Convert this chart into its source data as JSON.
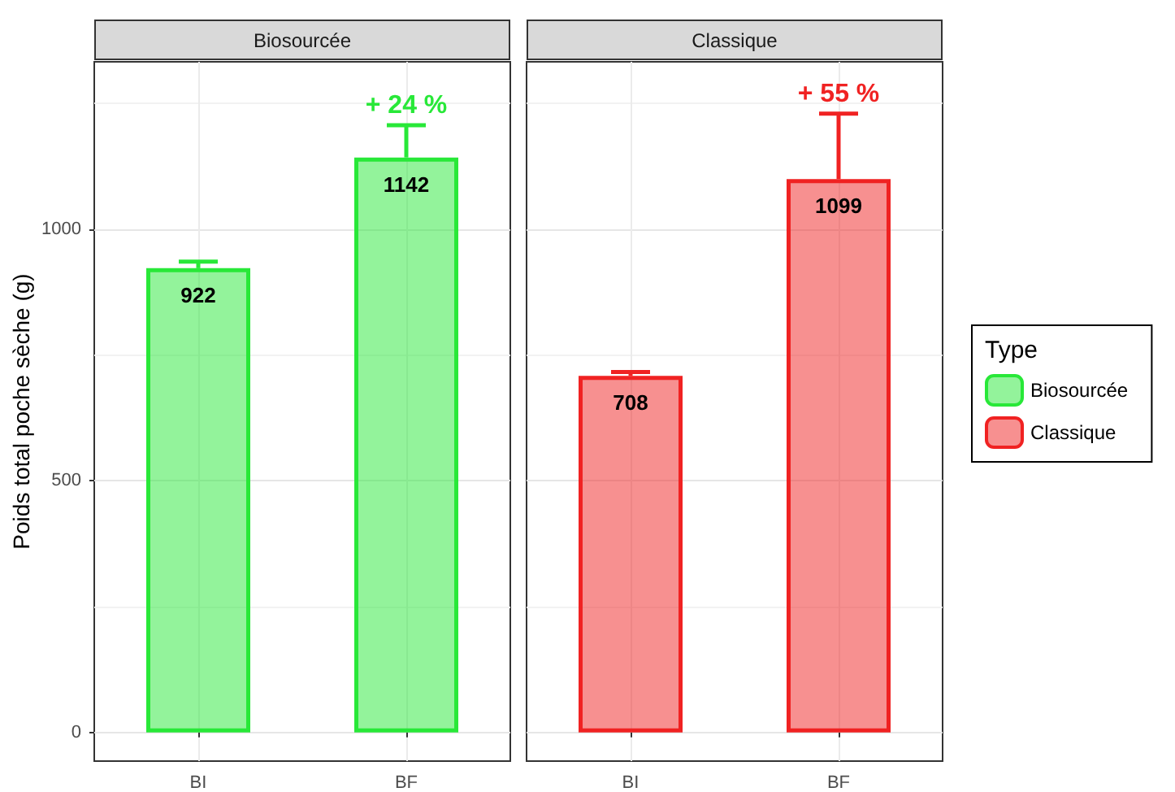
{
  "chart_data": [
    {
      "type": "bar",
      "title": "Biosourcée",
      "ylabel": "Poids total poche sèche (g)",
      "categories": [
        "BI",
        "BF"
      ],
      "series": [
        {
          "name": "Biosourcée",
          "color": "#28e838",
          "values": [
            922,
            1142
          ],
          "errors": [
            [
              922,
              935
            ],
            [
              1142,
              1206
            ]
          ]
        }
      ],
      "ylim": [
        -57,
        1332
      ],
      "yticks": [
        0,
        {
          "value": 250,
          "label": null
        },
        500,
        {
          "value": 750,
          "label": null
        },
        1000,
        {
          "value": 1250,
          "label": null
        }
      ],
      "annotations": [
        {
          "text": "+ 24 %",
          "x": "BF",
          "y": 1206
        }
      ],
      "data_labels": true,
      "grid": true,
      "legend": "right"
    },
    {
      "type": "bar",
      "title": "Classique",
      "categories": [
        "BI",
        "BF"
      ],
      "series": [
        {
          "name": "Classique",
          "color": "#f02222",
          "values": [
            708,
            1099
          ],
          "errors": [
            [
              708,
              716
            ],
            [
              1099,
              1229
            ]
          ]
        }
      ],
      "ylim": [
        -57,
        1332
      ],
      "yticks": [
        0,
        {
          "value": 250,
          "label": null
        },
        500,
        {
          "value": 750,
          "label": null
        },
        1000,
        {
          "value": 1250,
          "label": null
        }
      ],
      "annotations": [
        {
          "text": "+ 55 %",
          "x": "BF",
          "y": 1229
        }
      ],
      "data_labels": true,
      "grid": true,
      "legend": "right",
      "legend_title": "Type",
      "tick_labels": "x"
    }
  ]
}
